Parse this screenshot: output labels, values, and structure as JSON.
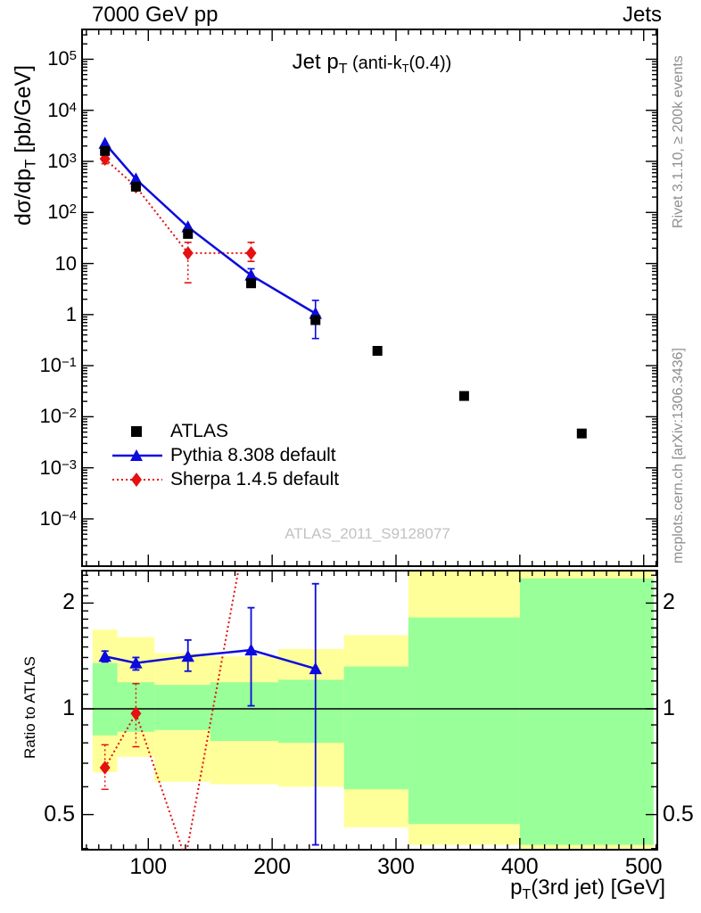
{
  "header": {
    "left": "7000 GeV pp",
    "right": "Jets"
  },
  "side_notes": {
    "top_right": "Rivet 3.1.10, ≥ 200k events",
    "bottom_right": "mcplots.cern.ch [arXiv:1306.3436]"
  },
  "watermark": "ATLAS_2011_S9128077",
  "legend": {
    "items": [
      {
        "label": "ATLAS",
        "marker": "square",
        "color": "#000000",
        "line": "none"
      },
      {
        "label": "Pythia 8.308 default",
        "marker": "triangle",
        "color": "#0b0bdd",
        "line": "solid"
      },
      {
        "label": "Sherpa 1.4.5 default",
        "marker": "diamond",
        "color": "#e51010",
        "line": "dotted"
      }
    ]
  },
  "labels": {
    "title_parts": [
      {
        "t": "Jet p",
        "s": 24
      },
      {
        "t": "T",
        "sub": true,
        "s": 16
      },
      {
        "t": " (anti-k",
        "s": 20
      },
      {
        "t": "T",
        "sub": true,
        "s": 13
      },
      {
        "t": "(0.4))",
        "s": 20
      }
    ],
    "ylabel_parts": [
      {
        "t": "dσ/dp",
        "s": 25
      },
      {
        "t": "T",
        "sub": true,
        "s": 17
      },
      {
        "t": " [pb/GeV]",
        "s": 25
      }
    ],
    "xlabel_parts": [
      {
        "t": "p",
        "s": 24
      },
      {
        "t": "T",
        "sub": true,
        "s": 16
      },
      {
        "t": "(3rd jet) [GeV]",
        "s": 24
      }
    ],
    "ratio_ylabel": "Ratio to ATLAS"
  },
  "colors": {
    "blue": "#0b0bdd",
    "red": "#e51010",
    "band_yellow": "#ffff99",
    "band_green": "#99ff99",
    "frame": "#000000",
    "note_gray": "#8e8e8e",
    "watermark_gray": "#c2c2c2"
  },
  "chart_data": {
    "type": "scatter",
    "title": "Jet pT (anti-kT(0.4))",
    "xlabel": "pT(3rd jet) [GeV]",
    "ylabel": "dsigma/dpT [pb/GeV]",
    "x_axis": {
      "scale": "linear",
      "lim": [
        46.5,
        511
      ],
      "major_ticks": [
        100,
        200,
        300,
        400,
        500
      ],
      "major_labels": [
        "100",
        "200",
        "300",
        "400",
        "500"
      ],
      "minor_step": 10
    },
    "y_axis_main": {
      "scale": "log",
      "lim_log10": [
        -4.92,
        5.58
      ],
      "major_ticks": [
        {
          "v": 100000.0,
          "base": "10",
          "sup": "5"
        },
        {
          "v": 10000.0,
          "base": "10",
          "sup": "4"
        },
        {
          "v": 1000.0,
          "base": "10",
          "sup": "3"
        },
        {
          "v": 100.0,
          "base": "10",
          "sup": "2"
        },
        {
          "v": 10,
          "base": "10",
          "sup": ""
        },
        {
          "v": 1,
          "base": "1",
          "sup": ""
        },
        {
          "v": 0.1,
          "base": "10",
          "sup": "−1"
        },
        {
          "v": 0.01,
          "base": "10",
          "sup": "−2"
        },
        {
          "v": 0.001,
          "base": "10",
          "sup": "−3"
        },
        {
          "v": 0.0001,
          "base": "10",
          "sup": "−4"
        }
      ]
    },
    "y_axis_ratio": {
      "scale": "log",
      "lim": [
        0.397,
        2.47
      ],
      "major_ticks": [
        {
          "v": 2,
          "label": "2"
        },
        {
          "v": 1,
          "label": "1"
        },
        {
          "v": 0.5,
          "label": "0.5"
        }
      ],
      "minor_ticks": [
        0.4,
        0.6,
        0.7,
        0.8,
        0.9,
        1.1,
        1.2,
        1.3,
        1.4,
        1.5,
        1.6,
        1.7,
        1.8,
        1.9,
        2.1,
        2.2,
        2.3,
        2.4
      ]
    },
    "series": [
      {
        "name": "ATLAS",
        "marker": "square",
        "color": "#000000",
        "line": "none",
        "x": [
          65,
          90,
          132,
          183,
          235,
          285,
          355,
          450
        ],
        "y": [
          1600,
          320,
          38,
          4.1,
          0.78,
          0.195,
          0.0255,
          0.0047
        ]
      },
      {
        "name": "Pythia 8.308 default",
        "marker": "triangle",
        "color": "#0b0bdd",
        "line": "solid",
        "x": [
          65,
          90,
          132,
          183,
          235
        ],
        "y": [
          2250,
          450,
          52,
          5.9,
          1.05
        ],
        "y_err_lo": [
          null,
          null,
          null,
          4.3,
          0.34
        ],
        "y_err_hi": [
          null,
          null,
          null,
          7.9,
          1.9
        ]
      },
      {
        "name": "Sherpa 1.4.5 default",
        "marker": "diamond",
        "color": "#e51010",
        "line": "dotted",
        "x": [
          65,
          90,
          132,
          183
        ],
        "y": [
          1120,
          320,
          16,
          16
        ],
        "y_err_lo": [
          900,
          null,
          4.2,
          11
        ],
        "y_err_hi": [
          1350,
          null,
          26,
          26
        ]
      }
    ],
    "ratio": {
      "reference": 1,
      "bands": {
        "edges": [
          55,
          75,
          105,
          150,
          205,
          258,
          310,
          400,
          508
        ],
        "yellow_hi": [
          1.68,
          1.6,
          1.44,
          1.41,
          1.48,
          1.62,
          2.47,
          2.47
        ],
        "yellow_lo": [
          0.66,
          0.73,
          0.62,
          0.61,
          0.6,
          0.46,
          0.41,
          0.4
        ],
        "green_hi": [
          1.35,
          1.19,
          1.17,
          1.19,
          1.21,
          1.32,
          1.82,
          2.35
        ],
        "green_lo": [
          0.84,
          0.86,
          0.87,
          0.81,
          0.8,
          0.59,
          0.47,
          0.41
        ]
      },
      "pythia": {
        "x": [
          65,
          90,
          132,
          183,
          235
        ],
        "r": [
          1.41,
          1.35,
          1.41,
          1.47,
          1.3
        ],
        "lo": [
          1.36,
          1.29,
          1.28,
          1.02,
          0.41
        ],
        "hi": [
          1.46,
          1.4,
          1.57,
          1.94,
          2.27
        ]
      },
      "sherpa": {
        "x": [
          65,
          90,
          130,
          183
        ],
        "r": [
          0.68,
          0.97,
          0.375,
          3.9
        ],
        "marker": [
          true,
          true,
          false,
          false
        ],
        "lo": [
          0.59,
          0.78,
          null,
          null
        ],
        "hi": [
          0.79,
          1.18,
          null,
          null
        ]
      }
    }
  }
}
